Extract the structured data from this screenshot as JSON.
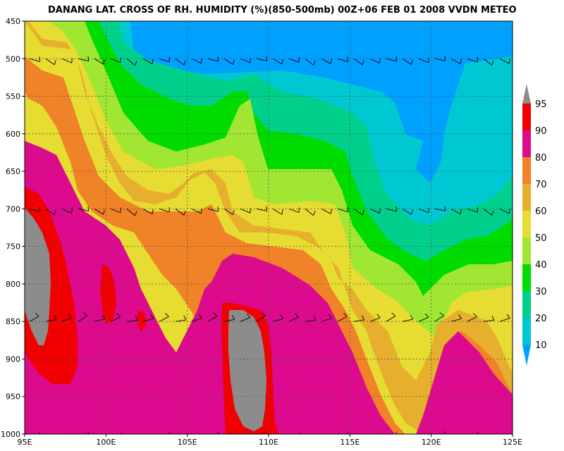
{
  "chart_data": {
    "type": "heatmap",
    "title": "DANANG LAT. CROSS OF RH. HUMIDITY (%)(850-500mb) 00Z+06 FEB 01 2008 VVDN METEO",
    "xlabel": "",
    "ylabel": "",
    "x_ticks": [
      "95E",
      "100E",
      "105E",
      "110E",
      "115E",
      "120E",
      "125E"
    ],
    "x_values": [
      95,
      100,
      105,
      110,
      115,
      120,
      125
    ],
    "xlim": [
      95,
      125
    ],
    "y_ticks": [
      "450",
      "500",
      "550",
      "600",
      "650",
      "700",
      "750",
      "800",
      "850",
      "900",
      "950",
      "1000"
    ],
    "y_values": [
      450,
      500,
      550,
      600,
      650,
      700,
      750,
      800,
      850,
      900,
      950,
      1000
    ],
    "ylim": [
      450,
      1000
    ],
    "y_inverted": true,
    "grid": true,
    "legend_placement": "right",
    "legend": {
      "levels": [
        "10",
        "20",
        "30",
        "40",
        "50",
        "60",
        "70",
        "80",
        "90",
        "95"
      ],
      "colors": [
        "#00a0ff",
        "#00c8d2",
        "#00d08c",
        "#00dc00",
        "#a0e632",
        "#e6dc32",
        "#e6af2d",
        "#f08228",
        "#dc0a8c",
        "#f00000",
        "#8c8c8c"
      ]
    },
    "wind_barb_levels": [
      500,
      700,
      850,
      1000
    ]
  }
}
